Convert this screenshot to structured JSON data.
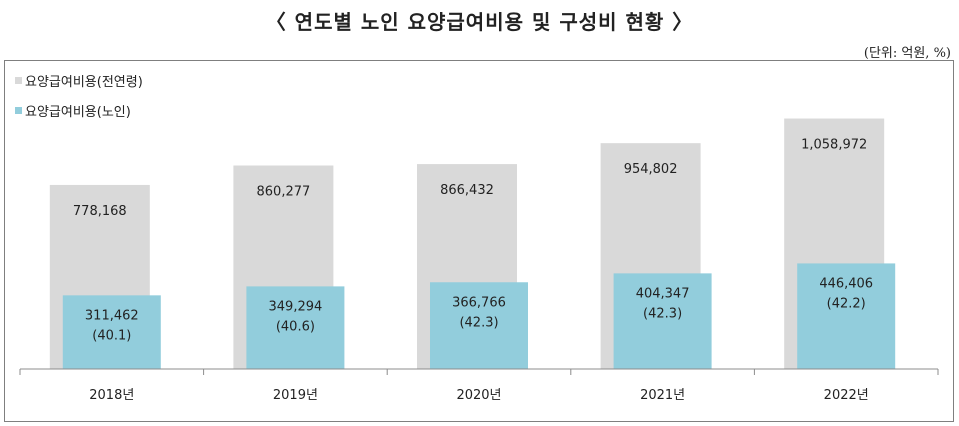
{
  "title": "〈 연도별 노인 요양급여비용 및 구성비 현황 〉",
  "unit": "(단위: 억원, %)",
  "chart_data": {
    "type": "bar",
    "categories": [
      "2018년",
      "2019년",
      "2020년",
      "2021년",
      "2022년"
    ],
    "series": [
      {
        "name": "요양급여비용(전연령)",
        "color": "#d9d9d9",
        "values": [
          778168,
          860277,
          866432,
          954802,
          1058972
        ],
        "labels": [
          "778,168",
          "860,277",
          "866,432",
          "954,802",
          "1,058,972"
        ]
      },
      {
        "name": "요양급여비용(노인)",
        "color": "#92cddc",
        "values": [
          311462,
          349294,
          366766,
          404347,
          446406
        ],
        "labels": [
          "311,462",
          "349,294",
          "366,766",
          "404,347",
          "446,406"
        ],
        "shares": [
          "(40.1)",
          "(40.6)",
          "(42.3)",
          "(42.3)",
          "(42.2)"
        ]
      }
    ],
    "ylim": [
      0,
      1150000
    ],
    "legend_position": "top-left",
    "grid": false
  }
}
